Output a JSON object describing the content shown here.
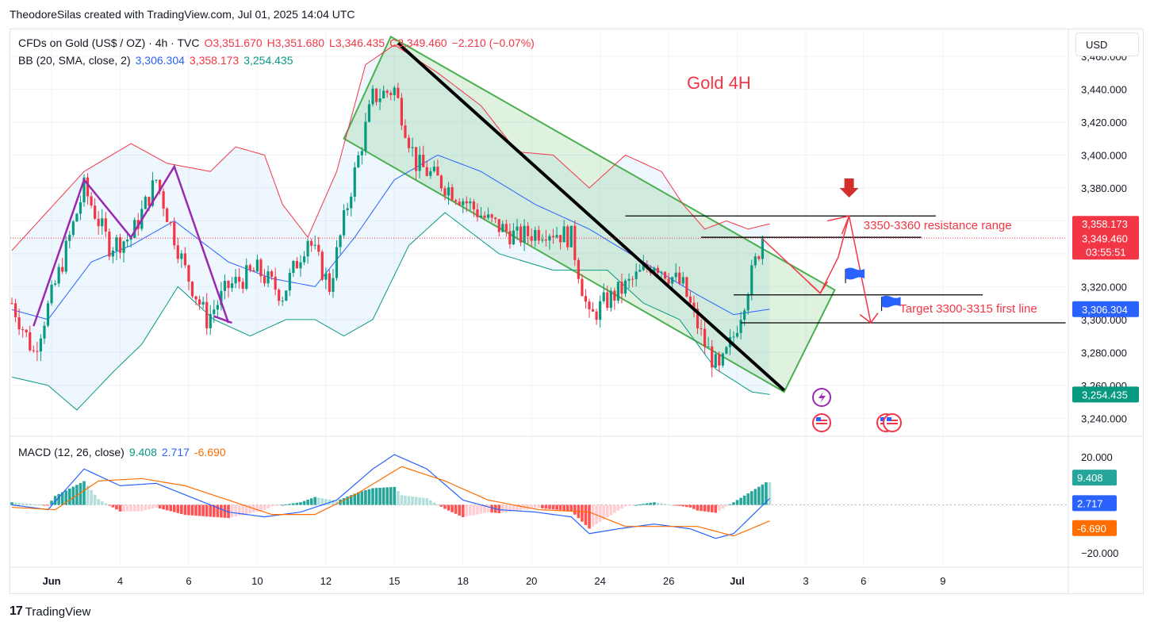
{
  "caption": "TheodoreSilas created with TradingView.com, Jul 01, 2025 14:04 UTC",
  "legend": {
    "symbol": "CFDs on Gold (US$ / OZ) · 4h · TVC",
    "open": "O3,351.670",
    "high": "H3,351.680",
    "low": "L3,346.435",
    "close": "C3,349.460",
    "change": "−2.210 (−0.07%)",
    "bb_label": "BB (20, SMA, close, 2)",
    "bb_basis": "3,306.304",
    "bb_upper": "3,358.173",
    "bb_lower": "3,254.435",
    "macd_label": "MACD (12, 26, close)",
    "macd_hist": "9.408",
    "macd_line": "2.717",
    "macd_signal": "-6.690"
  },
  "currency": "USD",
  "footer": {
    "logo_text": "17",
    "brand": "TradingView"
  },
  "colors": {
    "up": "#089981",
    "down": "#f23645",
    "bb_basis": "#2962ff",
    "bb_band": "#f23645",
    "bb_lower": "#089981",
    "annotation": "#f23645",
    "channel": "#4caf50",
    "pattern": "#9c27b0",
    "macd_line": "#2962ff",
    "signal": "#ff6d00"
  },
  "chart_data": [
    {
      "type": "candlestick",
      "title": "Gold 4H",
      "y_range": [
        3230,
        3475
      ],
      "y_ticks": [
        3240,
        3260,
        3280,
        3300,
        3320,
        3340,
        3360,
        3380,
        3400,
        3420,
        3440,
        3460
      ],
      "y_tick_labels": [
        "3,240.000",
        "3,260.000",
        "3,280.000",
        "3,300.000",
        "3,320.000",
        "3,340.000",
        "3,360.000",
        "3,380.000",
        "3,400.000",
        "3,420.000",
        "3,440.000",
        "3,460.000"
      ],
      "x_tick_labels": [
        "Jun",
        "4",
        "6",
        "10",
        "12",
        "15",
        "18",
        "20",
        "24",
        "26",
        "Jul",
        "3",
        "6",
        "9"
      ],
      "bar_count": 220,
      "x_ticks_bar": [
        11,
        30,
        49,
        68,
        87,
        106,
        125,
        144,
        163,
        182,
        201,
        220,
        236,
        258
      ],
      "path_bars": [
        0,
        6,
        14,
        20,
        27,
        33,
        40,
        48,
        54,
        60,
        68,
        75,
        82,
        88,
        94,
        100,
        106,
        112,
        118,
        124,
        132,
        140,
        148,
        155,
        160,
        164,
        170,
        178,
        186,
        192,
        196,
        200,
        204,
        208
      ],
      "path_closes": [
        3310,
        3280,
        3335,
        3380,
        3345,
        3350,
        3385,
        3330,
        3300,
        3320,
        3330,
        3315,
        3350,
        3320,
        3380,
        3435,
        3440,
        3395,
        3385,
        3375,
        3360,
        3350,
        3355,
        3350,
        3300,
        3310,
        3320,
        3335,
        3320,
        3285,
        3268,
        3290,
        3320,
        3349.46
      ],
      "bb_upper": [
        {
          "b": 0,
          "v": 3342
        },
        {
          "b": 20,
          "v": 3390
        },
        {
          "b": 33,
          "v": 3407
        },
        {
          "b": 43,
          "v": 3395
        },
        {
          "b": 55,
          "v": 3390
        },
        {
          "b": 62,
          "v": 3405
        },
        {
          "b": 70,
          "v": 3400
        },
        {
          "b": 75,
          "v": 3370
        },
        {
          "b": 82,
          "v": 3350
        },
        {
          "b": 90,
          "v": 3390
        },
        {
          "b": 98,
          "v": 3455
        },
        {
          "b": 106,
          "v": 3467
        },
        {
          "b": 118,
          "v": 3450
        },
        {
          "b": 130,
          "v": 3430
        },
        {
          "b": 140,
          "v": 3402
        },
        {
          "b": 150,
          "v": 3400
        },
        {
          "b": 160,
          "v": 3380
        },
        {
          "b": 170,
          "v": 3400
        },
        {
          "b": 180,
          "v": 3390
        },
        {
          "b": 186,
          "v": 3370
        },
        {
          "b": 192,
          "v": 3355
        },
        {
          "b": 198,
          "v": 3360
        },
        {
          "b": 204,
          "v": 3355
        },
        {
          "b": 210,
          "v": 3358.173
        }
      ],
      "bb_basis": [
        {
          "b": 0,
          "v": 3306
        },
        {
          "b": 10,
          "v": 3300
        },
        {
          "b": 22,
          "v": 3335
        },
        {
          "b": 33,
          "v": 3345
        },
        {
          "b": 45,
          "v": 3360
        },
        {
          "b": 60,
          "v": 3335
        },
        {
          "b": 72,
          "v": 3325
        },
        {
          "b": 84,
          "v": 3320
        },
        {
          "b": 95,
          "v": 3350
        },
        {
          "b": 106,
          "v": 3385
        },
        {
          "b": 118,
          "v": 3400
        },
        {
          "b": 130,
          "v": 3390
        },
        {
          "b": 145,
          "v": 3370
        },
        {
          "b": 160,
          "v": 3355
        },
        {
          "b": 175,
          "v": 3335
        },
        {
          "b": 190,
          "v": 3315
        },
        {
          "b": 200,
          "v": 3303
        },
        {
          "b": 210,
          "v": 3306.304
        }
      ],
      "bb_lower": [
        {
          "b": 0,
          "v": 3265
        },
        {
          "b": 10,
          "v": 3260
        },
        {
          "b": 18,
          "v": 3245
        },
        {
          "b": 28,
          "v": 3268
        },
        {
          "b": 36,
          "v": 3285
        },
        {
          "b": 46,
          "v": 3320
        },
        {
          "b": 56,
          "v": 3300
        },
        {
          "b": 66,
          "v": 3290
        },
        {
          "b": 76,
          "v": 3300
        },
        {
          "b": 84,
          "v": 3300
        },
        {
          "b": 92,
          "v": 3290
        },
        {
          "b": 100,
          "v": 3300
        },
        {
          "b": 110,
          "v": 3345
        },
        {
          "b": 120,
          "v": 3365
        },
        {
          "b": 135,
          "v": 3340
        },
        {
          "b": 150,
          "v": 3330
        },
        {
          "b": 165,
          "v": 3330
        },
        {
          "b": 175,
          "v": 3310
        },
        {
          "b": 185,
          "v": 3300
        },
        {
          "b": 195,
          "v": 3270
        },
        {
          "b": 205,
          "v": 3256
        },
        {
          "b": 210,
          "v": 3254.435
        }
      ],
      "annotations": {
        "resistance_label": "3350-3360 resistance range",
        "target_label": "Target 3300-3315 first line",
        "resistance_top": 3363,
        "resistance_bottom": 3350,
        "target_top": 3315,
        "target_bottom": 3298
      },
      "price_labels": {
        "bb_upper": "3,358.173",
        "last": "3,349.460",
        "countdown": "03:55:51",
        "bb_basis": "3,306.304",
        "bb_lower": "3,254.435"
      }
    },
    {
      "type": "bar",
      "title": "MACD (12, 26, close)",
      "y_range": [
        -25,
        28
      ],
      "y_ticks": [
        20,
        -20
      ],
      "y_tick_labels": [
        "20.000",
        "−20.000"
      ],
      "macd_points": [
        {
          "b": 0,
          "v": 0
        },
        {
          "b": 10,
          "v": -2
        },
        {
          "b": 20,
          "v": 15
        },
        {
          "b": 30,
          "v": 8
        },
        {
          "b": 40,
          "v": 9
        },
        {
          "b": 50,
          "v": 3
        },
        {
          "b": 60,
          "v": -3
        },
        {
          "b": 70,
          "v": -5
        },
        {
          "b": 80,
          "v": -3
        },
        {
          "b": 90,
          "v": 2
        },
        {
          "b": 100,
          "v": 15
        },
        {
          "b": 106,
          "v": 21
        },
        {
          "b": 115,
          "v": 15
        },
        {
          "b": 125,
          "v": 2
        },
        {
          "b": 135,
          "v": -2
        },
        {
          "b": 145,
          "v": -3
        },
        {
          "b": 155,
          "v": -5
        },
        {
          "b": 160,
          "v": -12
        },
        {
          "b": 168,
          "v": -10
        },
        {
          "b": 178,
          "v": -8
        },
        {
          "b": 188,
          "v": -10
        },
        {
          "b": 195,
          "v": -14
        },
        {
          "b": 200,
          "v": -12
        },
        {
          "b": 210,
          "v": 2.717
        }
      ],
      "signal_points": [
        {
          "b": 0,
          "v": -1
        },
        {
          "b": 12,
          "v": -2
        },
        {
          "b": 24,
          "v": 10
        },
        {
          "b": 36,
          "v": 11
        },
        {
          "b": 48,
          "v": 8
        },
        {
          "b": 60,
          "v": 2
        },
        {
          "b": 72,
          "v": -4
        },
        {
          "b": 84,
          "v": -4
        },
        {
          "b": 96,
          "v": 5
        },
        {
          "b": 108,
          "v": 16
        },
        {
          "b": 120,
          "v": 10
        },
        {
          "b": 132,
          "v": 2
        },
        {
          "b": 146,
          "v": -2
        },
        {
          "b": 160,
          "v": -3
        },
        {
          "b": 170,
          "v": -9
        },
        {
          "b": 180,
          "v": -9
        },
        {
          "b": 190,
          "v": -9
        },
        {
          "b": 200,
          "v": -13
        },
        {
          "b": 210,
          "v": -6.69
        }
      ],
      "hist_end": 9.408
    }
  ]
}
